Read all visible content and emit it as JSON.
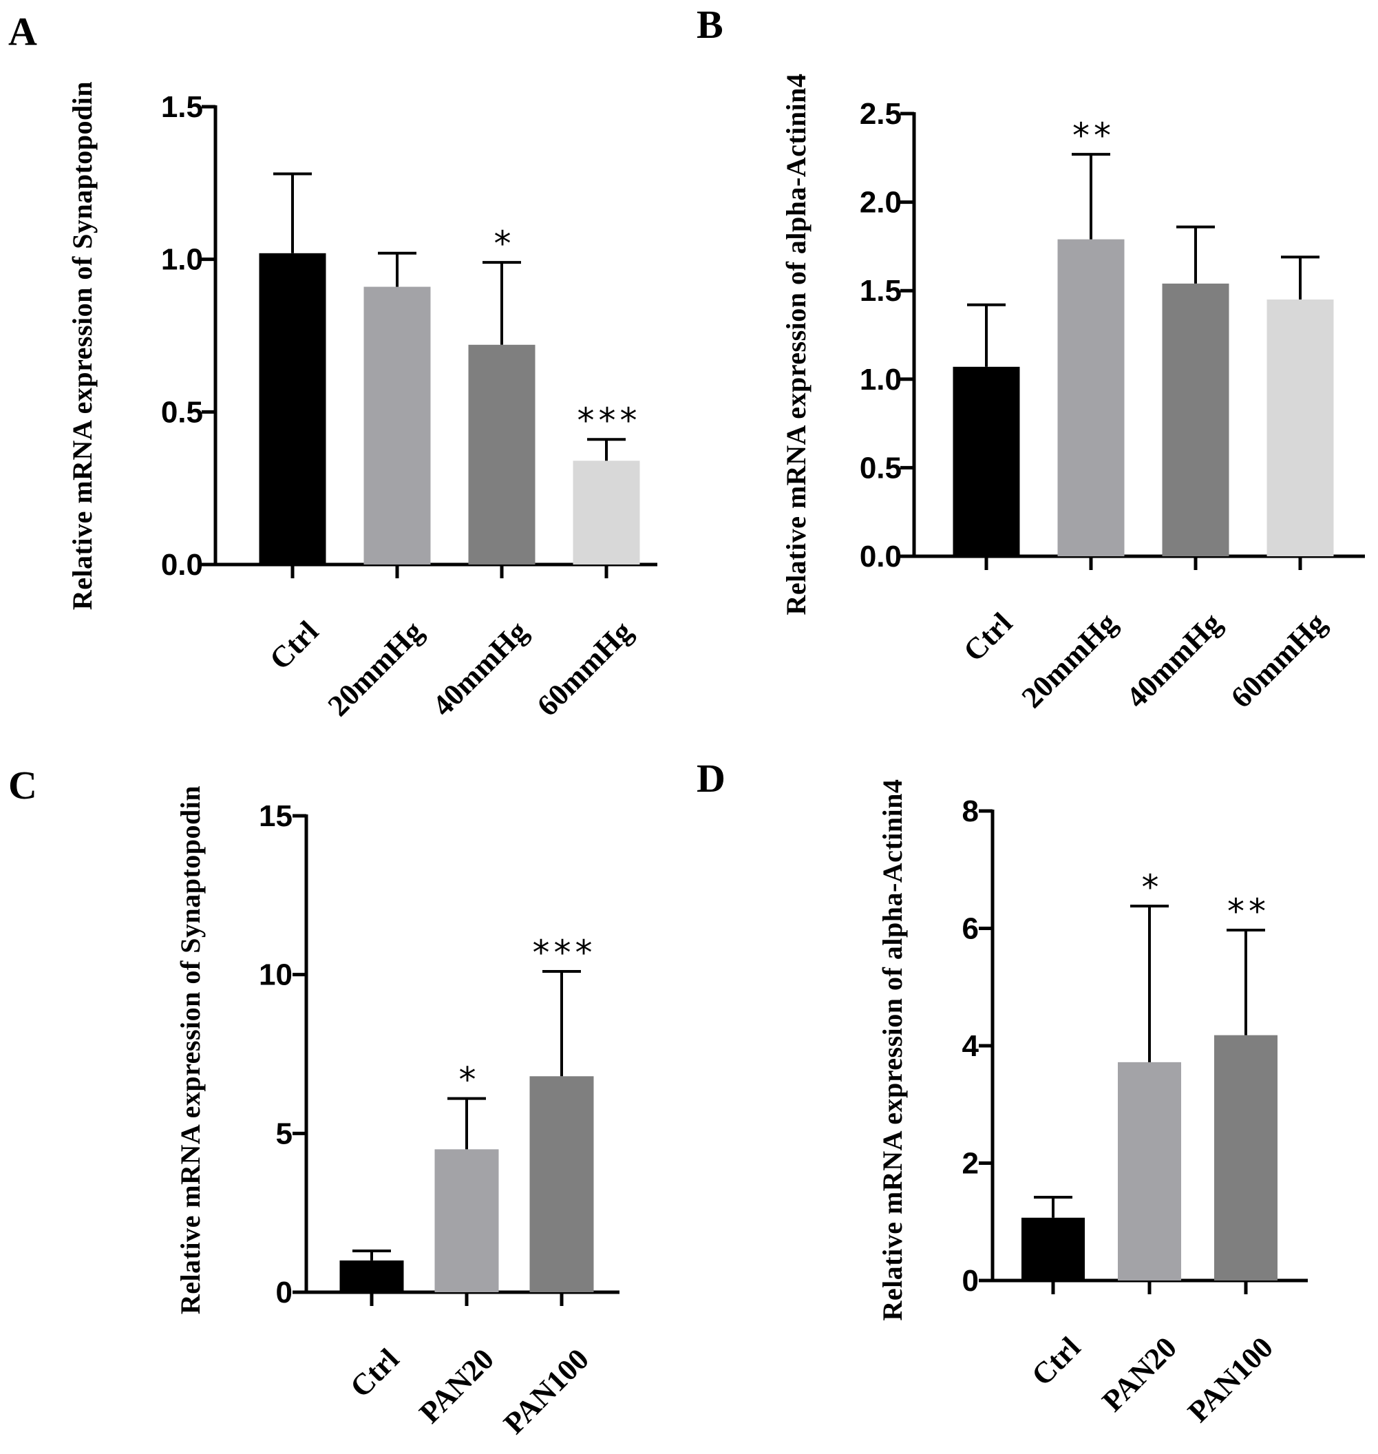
{
  "chart_data": [
    {
      "panel": "A",
      "type": "bar",
      "ylabel": "Relative mRNA expression of Synaptopodin",
      "categories": [
        "Ctrl",
        "20mmHg",
        "40mmHg",
        "60mmHg"
      ],
      "values": [
        1.02,
        0.91,
        0.72,
        0.34
      ],
      "errors": [
        0.26,
        0.11,
        0.27,
        0.07
      ],
      "colors": [
        "#000000",
        "#a3a3a7",
        "#7f7f7f",
        "#d8d8d8"
      ],
      "significance": [
        "",
        "",
        "*",
        "***"
      ],
      "ylim": [
        0,
        1.5
      ],
      "yticks": [
        0.0,
        0.5,
        1.0,
        1.5
      ],
      "ytick_labels": [
        "0.0",
        "0.5",
        "1.0",
        "1.5"
      ]
    },
    {
      "panel": "B",
      "type": "bar",
      "ylabel": "Relative mRNA expression of alpha-Actinin4",
      "categories": [
        "Ctrl",
        "20mmHg",
        "40mmHg",
        "60mmHg"
      ],
      "values": [
        1.07,
        1.79,
        1.54,
        1.45
      ],
      "errors": [
        0.35,
        0.48,
        0.32,
        0.24
      ],
      "colors": [
        "#000000",
        "#a3a3a7",
        "#7f7f7f",
        "#d8d8d8"
      ],
      "significance": [
        "",
        "**",
        "",
        ""
      ],
      "ylim": [
        0,
        2.5
      ],
      "yticks": [
        0.0,
        0.5,
        1.0,
        1.5,
        2.0,
        2.5
      ],
      "ytick_labels": [
        "0.0",
        "0.5",
        "1.0",
        "1.5",
        "2.0",
        "2.5"
      ]
    },
    {
      "panel": "C",
      "type": "bar",
      "ylabel": "Relative mRNA expression of Synaptopodin",
      "categories": [
        "Ctrl",
        "PAN20",
        "PAN100"
      ],
      "values": [
        1.0,
        4.5,
        6.8
      ],
      "errors": [
        0.3,
        1.6,
        3.3
      ],
      "colors": [
        "#000000",
        "#a3a3a7",
        "#7f7f7f"
      ],
      "significance": [
        "",
        "*",
        "***"
      ],
      "ylim": [
        0,
        15
      ],
      "yticks": [
        0,
        5,
        10,
        15
      ],
      "ytick_labels": [
        "0",
        "5",
        "10",
        "15"
      ]
    },
    {
      "panel": "D",
      "type": "bar",
      "ylabel": "Relative mRNA expression of alpha-Actinin4",
      "categories": [
        "Ctrl",
        "PAN20",
        "PAN100"
      ],
      "values": [
        1.07,
        3.72,
        4.18
      ],
      "errors": [
        0.35,
        2.66,
        1.79
      ],
      "colors": [
        "#000000",
        "#a3a3a7",
        "#7f7f7f"
      ],
      "significance": [
        "",
        "*",
        "**"
      ],
      "ylim": [
        0,
        8
      ],
      "yticks": [
        0,
        2,
        4,
        6,
        8
      ],
      "ytick_labels": [
        "0",
        "2",
        "4",
        "6",
        "8"
      ]
    }
  ]
}
